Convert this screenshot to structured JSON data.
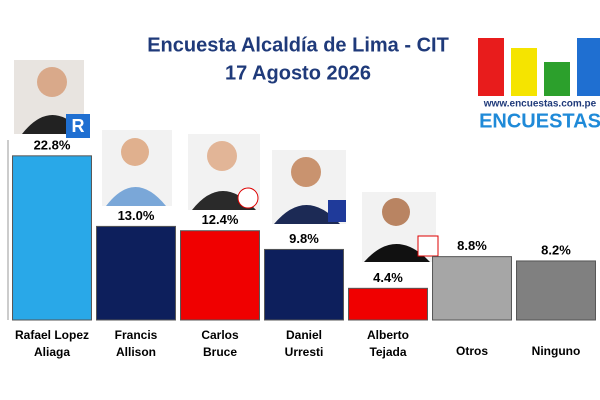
{
  "chart_data": {
    "type": "bar",
    "title": "Encuesta Alcaldía de Lima - CIT",
    "subtitle": "17 Agosto 2026",
    "categories": [
      "Rafael Lopez Aliaga",
      "Francis Allison",
      "Carlos Bruce",
      "Daniel Urresti",
      "Alberto Tejada",
      "Otros",
      "Ninguno"
    ],
    "values": [
      22.8,
      13.0,
      12.4,
      9.8,
      4.4,
      8.8,
      8.2
    ],
    "value_labels": [
      "22.8%",
      "13.0%",
      "12.4%",
      "9.8%",
      "4.4%",
      "8.8%",
      "8.2%"
    ],
    "colors": [
      "#29a8e8",
      "#0d1f5c",
      "#f00000",
      "#0d1f5c",
      "#f00000",
      "#a6a6a6",
      "#808080"
    ],
    "ylim": [
      0,
      25
    ],
    "logo": {
      "url": "www.encuestas.com.pe",
      "name": "ENCUESTAS"
    }
  }
}
